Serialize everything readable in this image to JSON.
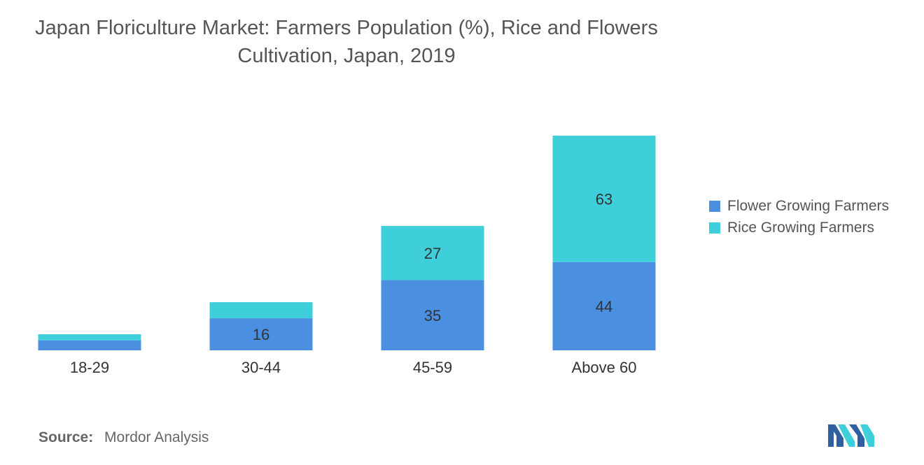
{
  "title_line1": "Japan Floriculture Market: Farmers Population (%), Rice and Flowers",
  "title_line2": "Cultivation, Japan, 2019",
  "source_label": "Source:",
  "source_value": "Mordor Analysis",
  "colors": {
    "flower": "#4a8fe0",
    "rice": "#3ecfda",
    "value_label": "#333333",
    "tick_label": "#333333"
  },
  "chart_data": {
    "type": "bar",
    "stacked": true,
    "title": "Japan Floriculture Market: Farmers Population (%), Rice and Flowers Cultivation, Japan, 2019",
    "categories": [
      "18-29",
      "30-44",
      "45-59",
      "Above 60"
    ],
    "series": [
      {
        "name": "Flower Growing Farmers",
        "values": [
          5,
          16,
          35,
          44
        ],
        "labels": [
          "",
          "16",
          "35",
          "44"
        ]
      },
      {
        "name": "Rice Growing Farmers",
        "values": [
          3,
          8,
          27,
          63
        ],
        "labels": [
          "",
          "",
          "27",
          "63"
        ]
      }
    ],
    "xlabel": "",
    "ylabel": "",
    "ylim": [
      0,
      107
    ],
    "grid": false,
    "legend_position": "right"
  }
}
